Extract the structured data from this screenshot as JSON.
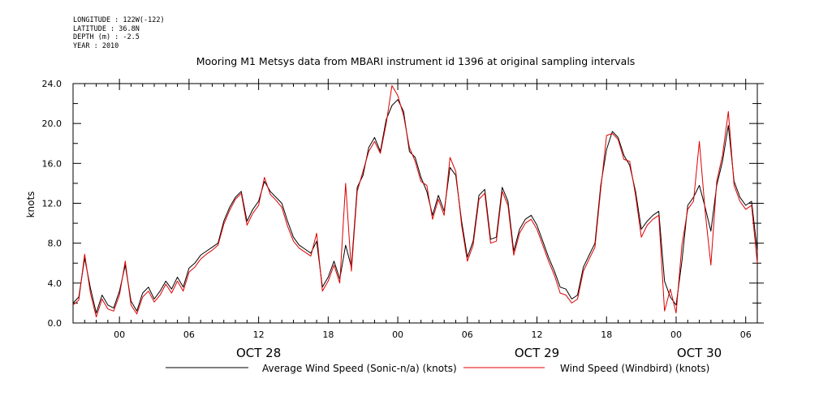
{
  "metadata": {
    "longitude": "LONGITUDE : 122W(-122)",
    "latitude": "LATITUDE : 36.8N",
    "depth": "DEPTH (m) : -2.5",
    "year": "YEAR : 2010"
  },
  "chart_data": {
    "type": "line",
    "title": "Mooring M1 Metsys data from MBARI instrument id 1396 at original sampling intervals",
    "xlabel": "",
    "ylabel": "knots",
    "ylim": [
      0,
      24
    ],
    "yticks": [
      0.0,
      4.0,
      8.0,
      12.0,
      16.0,
      20.0,
      24.0
    ],
    "ytick_labels": [
      "0.0",
      "4.0",
      "8.0",
      "12.0",
      "16.0",
      "20.0",
      "24.0"
    ],
    "xlim_hours": [
      -4,
      55
    ],
    "xticks_hours": [
      0,
      6,
      12,
      18,
      24,
      30,
      36,
      42,
      48,
      54
    ],
    "xtick_labels": [
      "00",
      "06",
      "12",
      "18",
      "00",
      "06",
      "12",
      "18",
      "00",
      "06"
    ],
    "date_labels": [
      {
        "hour": 12,
        "label": "OCT 28"
      },
      {
        "hour": 36,
        "label": "OCT 29"
      },
      {
        "hour": 50,
        "label": "OCT 30"
      }
    ],
    "x_hours": [
      -4,
      -3.5,
      -3,
      -2.5,
      -2,
      -1.5,
      -1,
      -0.5,
      0,
      0.5,
      1,
      1.5,
      2,
      2.5,
      3,
      3.5,
      4,
      4.5,
      5,
      5.5,
      6,
      6.5,
      7,
      7.5,
      8,
      8.5,
      9,
      9.5,
      10,
      10.5,
      11,
      11.5,
      12,
      12.5,
      13,
      13.5,
      14,
      14.5,
      15,
      15.5,
      16,
      16.5,
      17,
      17.5,
      18,
      18.5,
      19,
      19.5,
      20,
      20.5,
      21,
      21.5,
      22,
      22.5,
      23,
      23.5,
      24,
      24.5,
      25,
      25.5,
      26,
      26.5,
      27,
      27.5,
      28,
      28.5,
      29,
      29.5,
      30,
      30.5,
      31,
      31.5,
      32,
      32.5,
      33,
      33.5,
      34,
      34.5,
      35,
      35.5,
      36,
      36.5,
      37,
      37.5,
      38,
      38.5,
      39,
      39.5,
      40,
      40.5,
      41,
      41.5,
      42,
      42.5,
      43,
      43.5,
      44,
      44.5,
      45,
      45.5,
      46,
      46.5,
      47,
      47.5,
      48,
      48.5,
      49,
      49.5,
      50,
      50.5,
      51,
      51.5,
      52,
      52.5,
      53,
      53.5,
      54,
      54.5,
      55
    ],
    "series": [
      {
        "name": "Average Wind Speed (Sonic-n/a) (knots)",
        "color": "#000000",
        "values": [
          2.0,
          2.6,
          6.5,
          3.5,
          1.0,
          2.8,
          1.8,
          1.5,
          3.2,
          5.8,
          2.2,
          1.2,
          3.0,
          3.6,
          2.4,
          3.2,
          4.2,
          3.4,
          4.6,
          3.6,
          5.5,
          6.0,
          6.8,
          7.2,
          7.6,
          8.0,
          10.2,
          11.6,
          12.6,
          13.2,
          10.2,
          11.4,
          12.2,
          14.2,
          13.2,
          12.6,
          12.0,
          10.2,
          8.6,
          7.8,
          7.4,
          7.0,
          8.2,
          3.6,
          4.6,
          6.2,
          4.4,
          7.8,
          5.6,
          13.6,
          14.8,
          17.6,
          18.6,
          17.2,
          20.4,
          21.8,
          22.4,
          21.2,
          17.2,
          16.6,
          14.6,
          13.2,
          10.8,
          12.8,
          11.2,
          15.6,
          14.8,
          10.2,
          6.6,
          8.2,
          12.8,
          13.4,
          8.4,
          8.6,
          13.6,
          12.2,
          7.2,
          9.4,
          10.4,
          10.8,
          9.8,
          8.2,
          6.6,
          5.2,
          3.6,
          3.4,
          2.4,
          2.8,
          5.6,
          6.8,
          8.0,
          13.8,
          17.4,
          19.2,
          18.6,
          16.8,
          15.8,
          13.2,
          9.4,
          10.2,
          10.8,
          11.2,
          4.2,
          2.6,
          1.8,
          6.2,
          11.8,
          12.6,
          13.8,
          11.6,
          9.2,
          13.8,
          16.2,
          19.8,
          14.2,
          12.6,
          11.8,
          12.2,
          7.2
        ]
      },
      {
        "name": "Wind Speed (Windbird) (knots)",
        "color": "#dd0000",
        "values": [
          1.8,
          2.3,
          6.9,
          3.0,
          0.6,
          2.4,
          1.4,
          1.2,
          2.8,
          6.2,
          1.8,
          0.9,
          2.6,
          3.2,
          2.1,
          2.8,
          3.9,
          3.0,
          4.2,
          3.2,
          5.1,
          5.6,
          6.4,
          6.9,
          7.3,
          7.8,
          9.9,
          11.3,
          12.4,
          13.0,
          9.8,
          11.0,
          11.8,
          14.6,
          12.9,
          12.3,
          11.6,
          9.7,
          8.2,
          7.5,
          7.1,
          6.7,
          9.0,
          3.2,
          4.2,
          5.8,
          4.0,
          14.0,
          5.2,
          13.2,
          15.2,
          17.2,
          18.2,
          17.0,
          20.0,
          23.8,
          22.8,
          20.8,
          17.6,
          16.2,
          14.2,
          13.8,
          10.4,
          12.4,
          10.8,
          16.6,
          15.2,
          9.8,
          6.2,
          7.8,
          12.4,
          13.0,
          8.0,
          8.2,
          13.2,
          11.8,
          6.8,
          9.0,
          10.0,
          10.4,
          9.4,
          7.8,
          6.2,
          4.8,
          3.0,
          2.8,
          2.0,
          2.4,
          5.2,
          6.4,
          7.6,
          13.4,
          18.8,
          19.0,
          18.4,
          16.4,
          16.2,
          12.8,
          8.6,
          9.8,
          10.4,
          10.8,
          1.2,
          3.4,
          1.0,
          7.8,
          11.4,
          12.2,
          18.2,
          11.2,
          5.8,
          14.2,
          16.8,
          21.2,
          13.8,
          12.2,
          11.4,
          11.8,
          6.0
        ]
      }
    ],
    "legend_position": "bottom"
  }
}
